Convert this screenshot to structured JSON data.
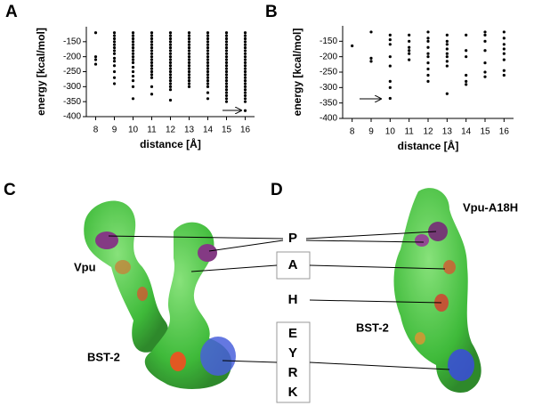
{
  "chart_data": [
    {
      "type": "scatter",
      "panel_label": "A",
      "xlabel": "distance [Å]",
      "ylabel": "energy  [kcal/mol]",
      "xlim": [
        7.5,
        16.5
      ],
      "ylim": [
        -400,
        -100
      ],
      "xticks": [
        8,
        9,
        10,
        11,
        12,
        13,
        14,
        15,
        16
      ],
      "yticks": [
        -150,
        -200,
        -250,
        -300,
        -350,
        -400
      ],
      "color": "#000000",
      "points": [
        {
          "x": 8,
          "y": [
            -120,
            -200,
            -210,
            -225
          ]
        },
        {
          "x": 9,
          "y": [
            -120,
            -130,
            -140,
            -150,
            -160,
            -170,
            -180,
            -190,
            -205,
            -215,
            -230,
            -250,
            -270,
            -290
          ]
        },
        {
          "x": 10,
          "y": [
            -120,
            -130,
            -140,
            -150,
            -160,
            -170,
            -180,
            -190,
            -200,
            -210,
            -220,
            -235,
            -250,
            -265,
            -280,
            -300,
            -340
          ]
        },
        {
          "x": 11,
          "y": [
            -120,
            -130,
            -140,
            -150,
            -160,
            -170,
            -180,
            -190,
            -200,
            -210,
            -220,
            -230,
            -240,
            -250,
            -260,
            -270,
            -300,
            -325
          ]
        },
        {
          "x": 12,
          "y": [
            -120,
            -130,
            -140,
            -150,
            -160,
            -170,
            -180,
            -190,
            -200,
            -210,
            -220,
            -230,
            -240,
            -250,
            -260,
            -270,
            -280,
            -290,
            -300,
            -310,
            -345
          ]
        },
        {
          "x": 13,
          "y": [
            -120,
            -130,
            -140,
            -150,
            -160,
            -170,
            -180,
            -190,
            -200,
            -210,
            -220,
            -230,
            -240,
            -250,
            -260,
            -270,
            -280,
            -290,
            -300
          ]
        },
        {
          "x": 14,
          "y": [
            -120,
            -130,
            -140,
            -150,
            -160,
            -170,
            -180,
            -190,
            -200,
            -210,
            -220,
            -230,
            -240,
            -250,
            -260,
            -270,
            -280,
            -290,
            -300,
            -320,
            -340
          ]
        },
        {
          "x": 15,
          "y": [
            -120,
            -130,
            -140,
            -150,
            -160,
            -170,
            -180,
            -190,
            -200,
            -210,
            -220,
            -230,
            -240,
            -250,
            -260,
            -270,
            -280,
            -290,
            -300,
            -310,
            -320,
            -330,
            -340,
            -350
          ]
        },
        {
          "x": 16,
          "y": [
            -120,
            -130,
            -140,
            -150,
            -160,
            -170,
            -180,
            -190,
            -200,
            -210,
            -220,
            -230,
            -240,
            -250,
            -260,
            -270,
            -280,
            -290,
            -300,
            -310,
            -320,
            -330,
            -340,
            -350,
            -380
          ]
        }
      ]
    },
    {
      "type": "scatter",
      "panel_label": "B",
      "xlabel": "distance [Å]",
      "ylabel": "energy  [kcal/mol]",
      "xlim": [
        7.5,
        16.5
      ],
      "ylim": [
        -400,
        -100
      ],
      "xticks": [
        8,
        9,
        10,
        11,
        12,
        13,
        14,
        15,
        16
      ],
      "yticks": [
        -150,
        -200,
        -250,
        -300,
        -350,
        -400
      ],
      "color": "#000000",
      "points": [
        {
          "x": 8,
          "y": [
            -165
          ]
        },
        {
          "x": 9,
          "y": [
            -120,
            -205,
            -215
          ]
        },
        {
          "x": 10,
          "y": [
            -130,
            -145,
            -160,
            -200,
            -230,
            -280,
            -300,
            -335
          ]
        },
        {
          "x": 11,
          "y": [
            -130,
            -150,
            -170,
            -180,
            -190,
            -210
          ]
        },
        {
          "x": 12,
          "y": [
            -120,
            -140,
            -150,
            -170,
            -190,
            -200,
            -220,
            -240,
            -260,
            -280
          ]
        },
        {
          "x": 13,
          "y": [
            -130,
            -150,
            -160,
            -175,
            -190,
            -200,
            -215,
            -230,
            -320
          ]
        },
        {
          "x": 14,
          "y": [
            -130,
            -180,
            -200,
            -260,
            -280,
            -290
          ]
        },
        {
          "x": 15,
          "y": [
            -120,
            -130,
            -150,
            -180,
            -220,
            -250,
            -265
          ]
        },
        {
          "x": 16,
          "y": [
            -120,
            -140,
            -160,
            -175,
            -190,
            -210,
            -245,
            -260
          ]
        }
      ]
    }
  ],
  "figure": {
    "panel_labels": [
      "C",
      "D"
    ],
    "residues": [
      "P",
      "A",
      "H",
      "E",
      "Y",
      "R",
      "K"
    ],
    "molecule_labels": [
      "Vpu",
      "BST-2",
      "BST-2",
      "Vpu-A18H"
    ]
  }
}
